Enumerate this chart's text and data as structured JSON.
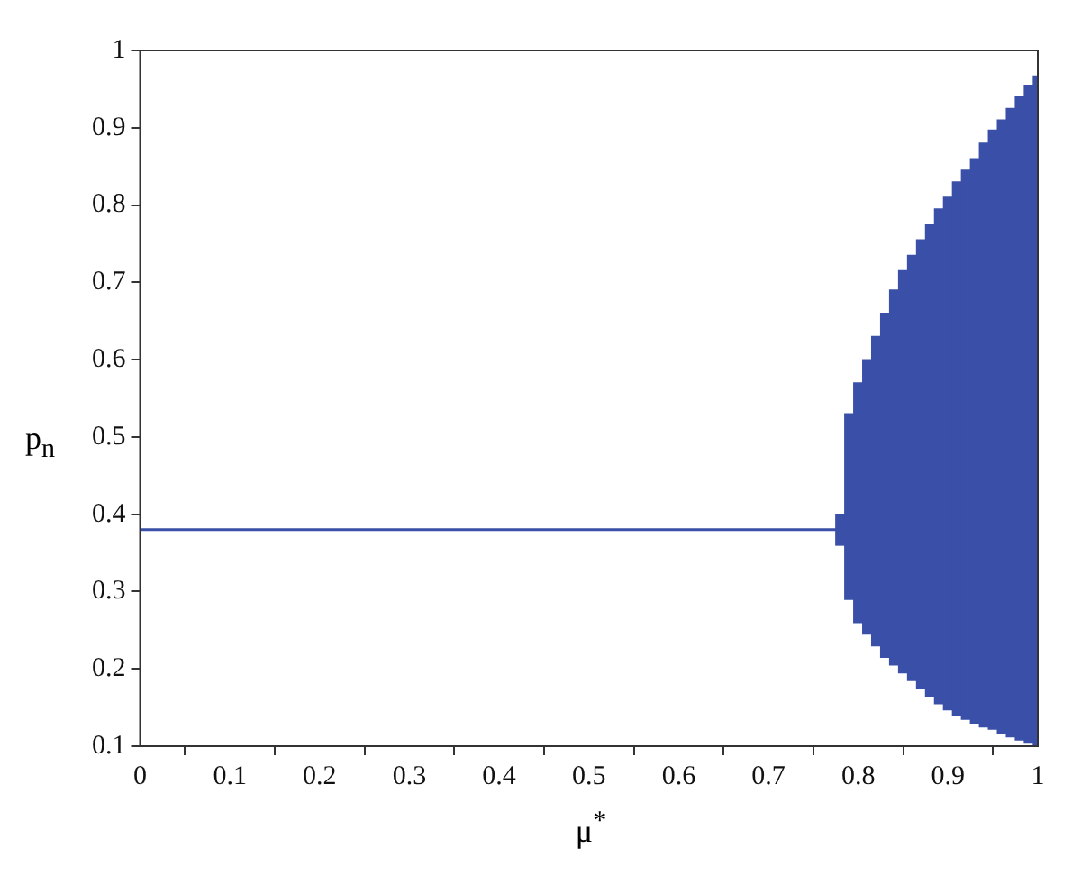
{
  "chart_data": {
    "type": "line",
    "xlabel": "μ$^{*}$",
    "ylabel": "p$_{n}$",
    "xlim": [
      0,
      1
    ],
    "ylim": [
      0.1,
      1
    ],
    "xticks": [
      0,
      0.1,
      0.2,
      0.3,
      0.4,
      0.5,
      0.6,
      0.7,
      0.8,
      0.9,
      1
    ],
    "yticks": [
      0.1,
      0.2,
      0.3,
      0.4,
      0.5,
      0.6,
      0.7,
      0.8,
      0.9,
      1
    ],
    "grid": false,
    "legend": false,
    "series": [
      {
        "color": "#3a50a8",
        "x": [
          0,
          0.78
        ],
        "values": [
          0.38,
          0.38
        ]
      },
      {
        "type": "bar",
        "color": "#3a50a8",
        "x": [
          0.78,
          0.79,
          0.8,
          0.81,
          0.82,
          0.83,
          0.84,
          0.85,
          0.86,
          0.87,
          0.88,
          0.89,
          0.9,
          0.91,
          0.92,
          0.93,
          0.94,
          0.95,
          0.96,
          0.97,
          0.98,
          0.99,
          1
        ],
        "base": [
          0.36,
          0.29,
          0.26,
          0.245,
          0.23,
          0.215,
          0.205,
          0.195,
          0.185,
          0.175,
          0.165,
          0.155,
          0.147,
          0.14,
          0.135,
          0.13,
          0.125,
          0.122,
          0.117,
          0.112,
          0.108,
          0.105,
          0.102
        ],
        "values": [
          0.04,
          0.24,
          0.31,
          0.355,
          0.4,
          0.445,
          0.485,
          0.52,
          0.55,
          0.58,
          0.61,
          0.64,
          0.663,
          0.69,
          0.71,
          0.73,
          0.755,
          0.775,
          0.793,
          0.813,
          0.832,
          0.85,
          0.865
        ]
      }
    ]
  }
}
